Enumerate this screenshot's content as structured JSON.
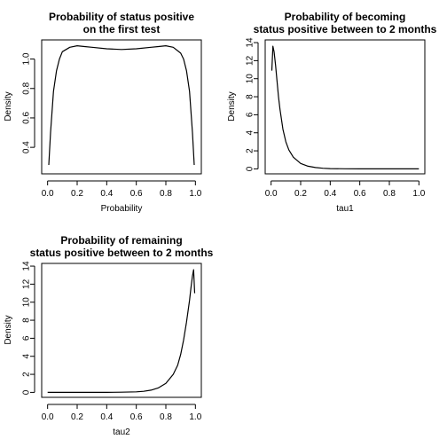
{
  "chart_data": [
    {
      "type": "line",
      "title_lines": [
        "Probability of status positive",
        "on the first test"
      ],
      "xlabel": "Probability",
      "ylabel": "Density",
      "xlim": [
        -0.04,
        1.04
      ],
      "ylim": [
        0.22,
        1.13
      ],
      "xticks": [
        0.0,
        0.2,
        0.4,
        0.6,
        0.8,
        1.0
      ],
      "xtick_labels": [
        "0.0",
        "0.2",
        "0.4",
        "0.6",
        "0.8",
        "1.0"
      ],
      "yticks": [
        0.4,
        0.6,
        0.8,
        1.0
      ],
      "ytick_labels": [
        "0.4",
        "0.6",
        "0.8",
        "1.0"
      ],
      "x": [
        0.008,
        0.02,
        0.04,
        0.06,
        0.08,
        0.1,
        0.15,
        0.2,
        0.25,
        0.3,
        0.4,
        0.5,
        0.6,
        0.7,
        0.75,
        0.8,
        0.85,
        0.9,
        0.92,
        0.94,
        0.96,
        0.98,
        0.992
      ],
      "y": [
        0.28,
        0.5,
        0.78,
        0.92,
        1.0,
        1.05,
        1.08,
        1.09,
        1.085,
        1.08,
        1.07,
        1.065,
        1.07,
        1.08,
        1.085,
        1.09,
        1.08,
        1.04,
        1.0,
        0.92,
        0.78,
        0.5,
        0.28
      ]
    },
    {
      "type": "line",
      "title_lines": [
        "Probability of becoming",
        "status positive between to 2 months"
      ],
      "xlabel": "tau1",
      "ylabel": "Density",
      "xlim": [
        -0.04,
        1.04
      ],
      "ylim": [
        -0.55,
        14.3
      ],
      "xticks": [
        0.0,
        0.2,
        0.4,
        0.6,
        0.8,
        1.0
      ],
      "xtick_labels": [
        "0.0",
        "0.2",
        "0.4",
        "0.6",
        "0.8",
        "1.0"
      ],
      "yticks": [
        0,
        2,
        4,
        6,
        8,
        10,
        12,
        14
      ],
      "ytick_labels": [
        "0",
        "2",
        "4",
        "6",
        "8",
        "10",
        "12",
        "14"
      ],
      "x": [
        0.005,
        0.012,
        0.02,
        0.03,
        0.04,
        0.05,
        0.06,
        0.08,
        0.1,
        0.12,
        0.15,
        0.2,
        0.25,
        0.3,
        0.35,
        0.4,
        0.5,
        0.6,
        0.8,
        1.0
      ],
      "y": [
        10.9,
        13.6,
        13.0,
        11.5,
        9.8,
        8.0,
        6.6,
        4.4,
        3.0,
        2.1,
        1.3,
        0.6,
        0.3,
        0.15,
        0.07,
        0.03,
        0.01,
        0.0,
        0.0,
        0.0
      ]
    },
    {
      "type": "line",
      "title_lines": [
        "Probability of remaining",
        "status positive between to 2 months"
      ],
      "xlabel": "tau2",
      "ylabel": "Density",
      "xlim": [
        -0.04,
        1.04
      ],
      "ylim": [
        -0.55,
        14.3
      ],
      "xticks": [
        0.0,
        0.2,
        0.4,
        0.6,
        0.8,
        1.0
      ],
      "xtick_labels": [
        "0.0",
        "0.2",
        "0.4",
        "0.6",
        "0.8",
        "1.0"
      ],
      "yticks": [
        0,
        2,
        4,
        6,
        8,
        10,
        12,
        14
      ],
      "ytick_labels": [
        "0",
        "2",
        "4",
        "6",
        "8",
        "10",
        "12",
        "14"
      ],
      "x": [
        0.0,
        0.2,
        0.4,
        0.5,
        0.6,
        0.65,
        0.7,
        0.75,
        0.8,
        0.85,
        0.88,
        0.9,
        0.92,
        0.94,
        0.96,
        0.97,
        0.98,
        0.988,
        0.995
      ],
      "y": [
        0.0,
        0.0,
        0.0,
        0.02,
        0.06,
        0.12,
        0.25,
        0.5,
        1.0,
        2.0,
        3.0,
        4.2,
        5.8,
        7.8,
        10.2,
        11.6,
        12.9,
        13.6,
        11.0
      ]
    }
  ]
}
